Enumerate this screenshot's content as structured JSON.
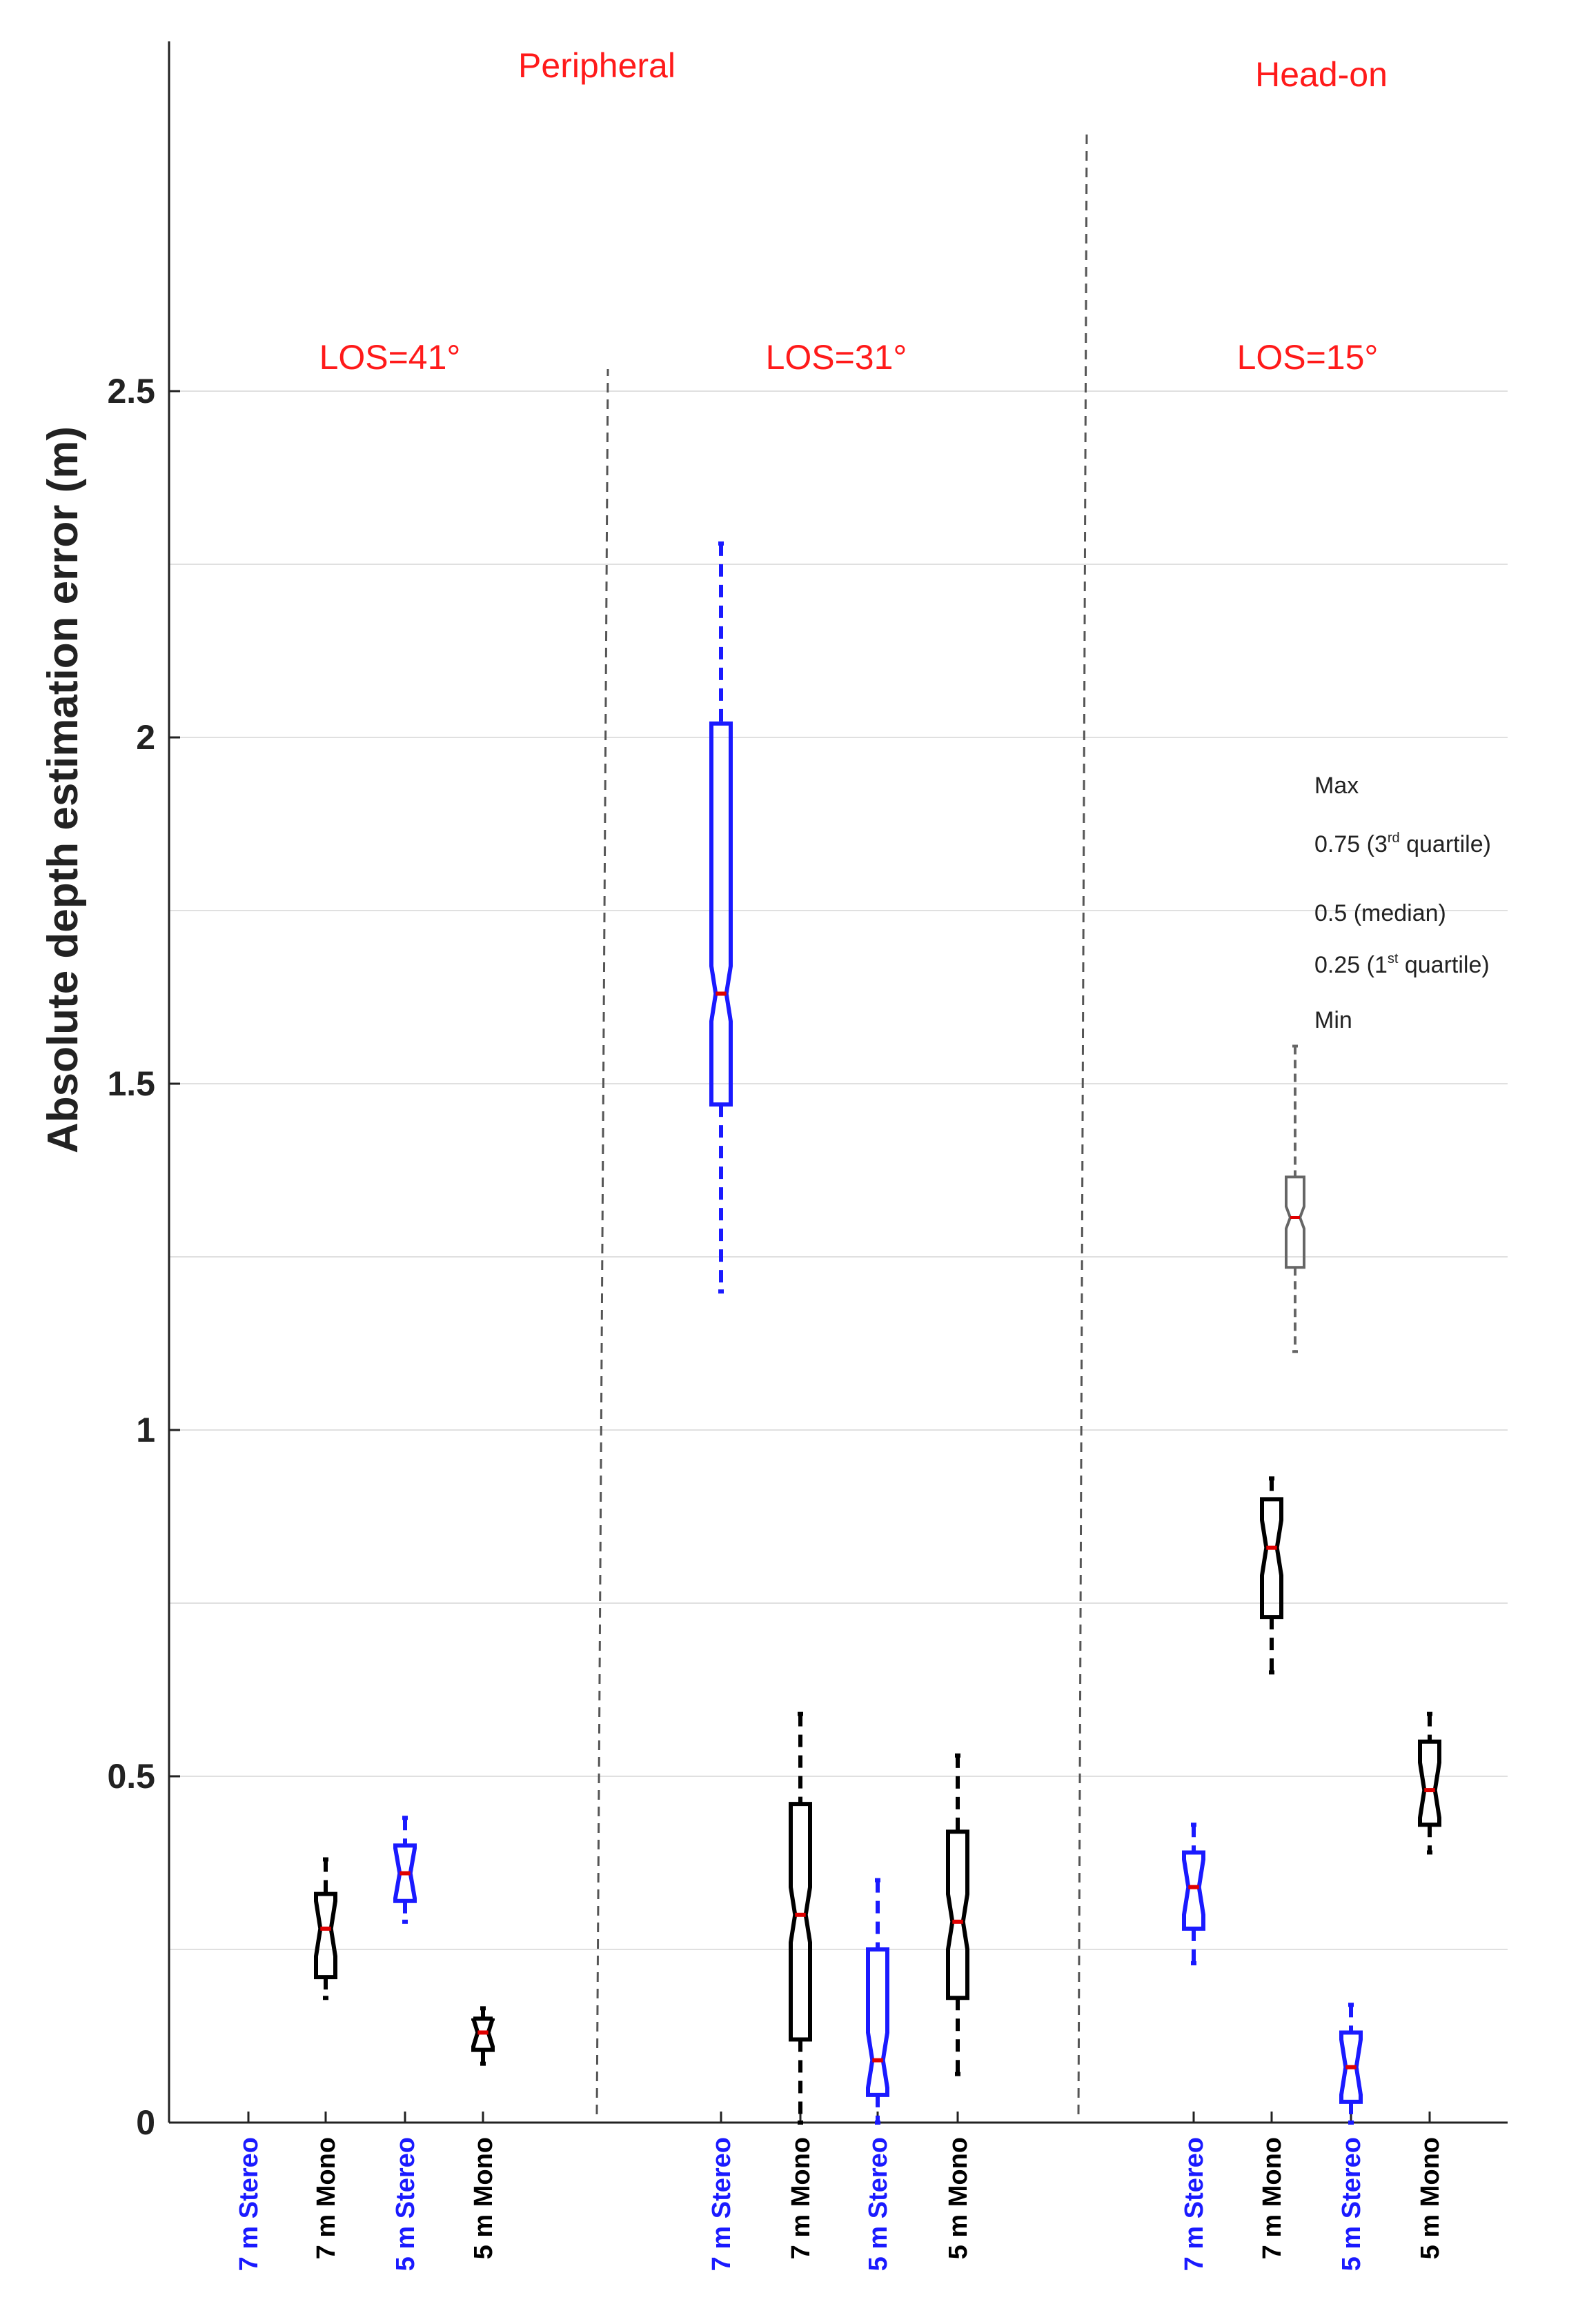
{
  "chart_data": {
    "type": "box",
    "ylabel": "Absolute depth estimation error (m)",
    "xlabel": "",
    "ylim": [
      0,
      2.95
    ],
    "yticks": [
      {
        "v": 0,
        "label": "0"
      },
      {
        "v": 0.5,
        "label": "0.5"
      },
      {
        "v": 1,
        "label": "1"
      },
      {
        "v": 1.5,
        "label": "1.5"
      },
      {
        "v": 2,
        "label": "2"
      },
      {
        "v": 2.5,
        "label": "2.5"
      }
    ],
    "minor_grid": [
      0.25,
      0.75,
      1.25,
      1.75,
      2.25
    ],
    "grid": true,
    "section_labels": [
      {
        "key": "peripheral",
        "text": "Peripheral"
      },
      {
        "key": "head-on",
        "text": "Head-on"
      },
      {
        "key": "los41",
        "text": "LOS=41°"
      },
      {
        "key": "los31",
        "text": "LOS=31°"
      },
      {
        "key": "los15",
        "text": "LOS=15°"
      }
    ],
    "colors": {
      "stereo": "#1a1aff",
      "mono": "#000000",
      "median": "#e00000",
      "section_label": "#ff1a1a",
      "grid": "#e0e0e0",
      "legend": "#666666"
    },
    "groups": [
      {
        "name": "LOS=41°",
        "boxes": [
          {
            "label": "7 m Stereo",
            "kind": "stereo",
            "empty": true
          },
          {
            "label": "7 m Mono",
            "kind": "mono",
            "min": 0.18,
            "q1": 0.21,
            "median": 0.28,
            "q3": 0.33,
            "max": 0.38
          },
          {
            "label": "5 m Stereo",
            "kind": "stereo",
            "min": 0.29,
            "q1": 0.32,
            "median": 0.36,
            "q3": 0.4,
            "max": 0.44
          },
          {
            "label": "5 m Mono",
            "kind": "mono",
            "min": 0.085,
            "q1": 0.105,
            "median": 0.13,
            "q3": 0.15,
            "max": 0.165
          }
        ]
      },
      {
        "name": "LOS=31°",
        "boxes": [
          {
            "label": "7 m Stereo",
            "kind": "stereo",
            "min": 1.2,
            "q1": 1.47,
            "median": 1.63,
            "q3": 2.02,
            "max": 2.28
          },
          {
            "label": "7 m Mono",
            "kind": "mono",
            "min": 0.0,
            "q1": 0.12,
            "median": 0.3,
            "q3": 0.46,
            "max": 0.59
          },
          {
            "label": "5 m Stereo",
            "kind": "stereo",
            "min": 0.0,
            "q1": 0.04,
            "median": 0.09,
            "q3": 0.25,
            "max": 0.35
          },
          {
            "label": "5 m Mono",
            "kind": "mono",
            "min": 0.07,
            "q1": 0.18,
            "median": 0.29,
            "q3": 0.42,
            "max": 0.53
          }
        ]
      },
      {
        "name": "LOS=15°",
        "boxes": [
          {
            "label": "7 m Stereo",
            "kind": "stereo",
            "min": 0.23,
            "q1": 0.28,
            "median": 0.34,
            "q3": 0.39,
            "max": 0.43
          },
          {
            "label": "7 m Mono",
            "kind": "mono",
            "min": 0.65,
            "q1": 0.73,
            "median": 0.83,
            "q3": 0.9,
            "max": 0.93
          },
          {
            "label": "5 m Stereo",
            "kind": "stereo",
            "min": 0.0,
            "q1": 0.03,
            "median": 0.08,
            "q3": 0.13,
            "max": 0.17
          },
          {
            "label": "5 m Mono",
            "kind": "mono",
            "min": 0.39,
            "q1": 0.43,
            "median": 0.48,
            "q3": 0.55,
            "max": 0.59
          }
        ]
      }
    ],
    "legend": {
      "position": "right",
      "items": [
        {
          "key": "max",
          "text": "Max"
        },
        {
          "key": "q3",
          "text": "0.75 (3",
          "sup": "rd",
          "tail": " quartile)"
        },
        {
          "key": "median",
          "text": "0.5 (median)"
        },
        {
          "key": "q1",
          "text": "0.25 (1",
          "sup": "st",
          "tail": " quartile)"
        },
        {
          "key": "min",
          "text": "Min"
        }
      ]
    }
  }
}
